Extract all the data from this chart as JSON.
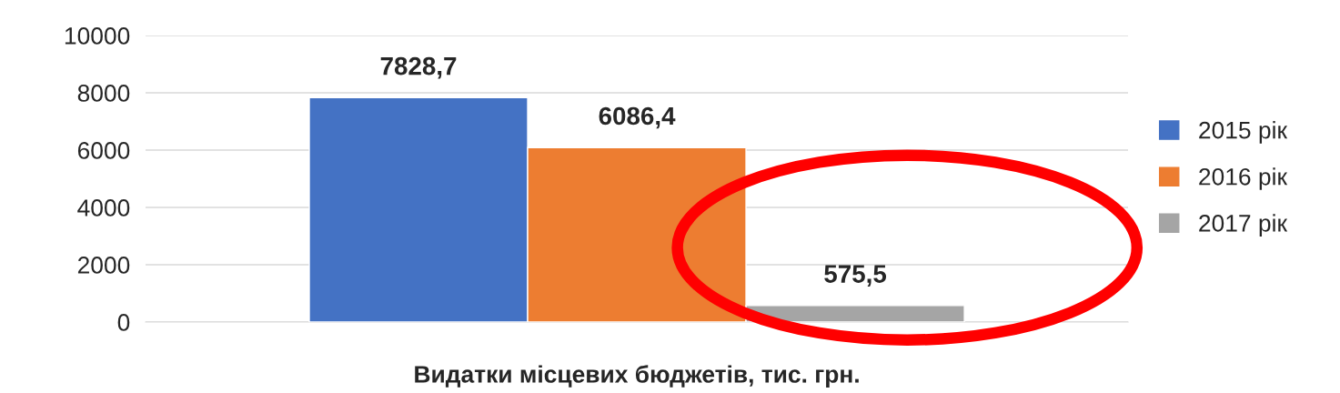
{
  "chart_data": {
    "type": "bar",
    "categories": [
      "Видатки місцевих бюджетів, тис. грн."
    ],
    "series": [
      {
        "name": "2015 рік",
        "color": "#4472c4",
        "values": [
          7828.7
        ],
        "value_labels": [
          "7828,7"
        ]
      },
      {
        "name": "2016 рік",
        "color": "#ed7d31",
        "values": [
          6086.4
        ],
        "value_labels": [
          "6086,4"
        ]
      },
      {
        "name": "2017 рік",
        "color": "#a5a5a5",
        "values": [
          575.5
        ],
        "value_labels": [
          "575,5"
        ]
      }
    ],
    "ylim": [
      0,
      10000
    ],
    "yticks": [
      0,
      2000,
      4000,
      6000,
      8000,
      10000
    ],
    "grid": "y",
    "legend": "right"
  }
}
